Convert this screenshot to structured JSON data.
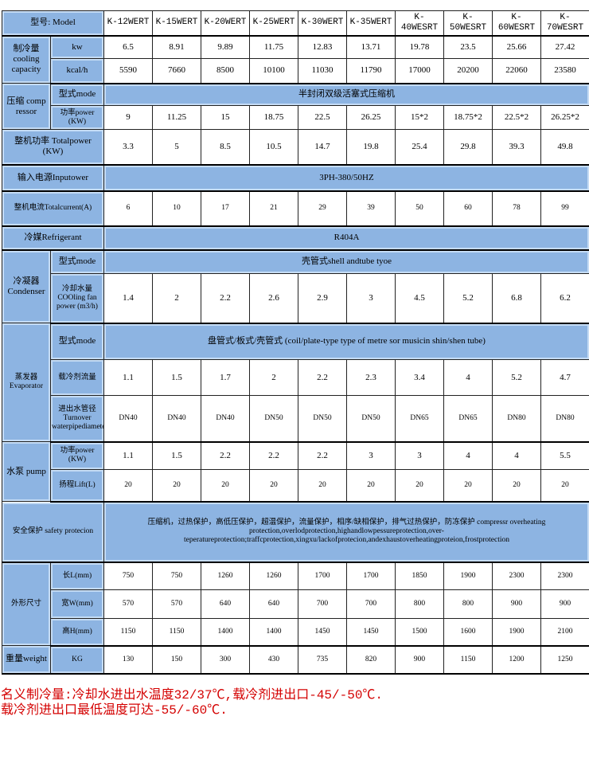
{
  "models_label": "型号: Model",
  "models": [
    "K-12WERT",
    "K-15WERT",
    "K-20WERT",
    "K-25WERT",
    "K-30WERT",
    "K-35WERT",
    "K-40WESRT",
    "K-50WESRT",
    "K-60WESRT",
    "K-70WESRT"
  ],
  "cooling": {
    "group": "制冷量 cooling capacity",
    "kw_label": "kw",
    "kw": [
      "6.5",
      "8.91",
      "9.89",
      "11.75",
      "12.83",
      "13.71",
      "19.78",
      "23.5",
      "25.66",
      "27.42"
    ],
    "kcal_label": "kcal/h",
    "kcal": [
      "5590",
      "7660",
      "8500",
      "10100",
      "11030",
      "11790",
      "17000",
      "20200",
      "22060",
      "23580"
    ]
  },
  "compressor": {
    "group": "压缩 comp ressor",
    "mode_label": "型式mode",
    "mode": "半封闭双级活塞式压缩机",
    "power_label": "功率power (KW)",
    "power": [
      "9",
      "11.25",
      "15",
      "18.75",
      "22.5",
      "26.25",
      "15*2",
      "18.75*2",
      "22.5*2",
      "26.25*2"
    ]
  },
  "total_power": {
    "label": "整机功率 Totalpower (KW)",
    "values": [
      "3.3",
      "5",
      "8.5",
      "10.5",
      "14.7",
      "19.8",
      "25.4",
      "29.8",
      "39.3",
      "49.8"
    ]
  },
  "input_power": {
    "label": "输入电源Inputower",
    "value": "3PH-380/50HZ"
  },
  "total_current": {
    "label": "整机电流Totalcurrent(A)",
    "values": [
      "6",
      "10",
      "17",
      "21",
      "29",
      "39",
      "50",
      "60",
      "78",
      "99"
    ]
  },
  "refrigerant": {
    "label": "冷媒Refrigerant",
    "value": "R404A"
  },
  "condenser": {
    "group": "冷凝器 Condenser",
    "mode_label": "型式mode",
    "mode": "壳管式shell andtube tyoe",
    "water_label": "冷却水量 COOling fan power (m3/h)",
    "water": [
      "1.4",
      "2",
      "2.2",
      "2.6",
      "2.9",
      "3",
      "4.5",
      "5.2",
      "6.8",
      "6.2"
    ]
  },
  "evaporator": {
    "group": "蒸发器 Evaporator",
    "mode_label": "型式mode",
    "mode": "盘管式/板式/壳管式 (coil/plate-type type of metre sor musicin shin/shen tube)",
    "flow_label": "载冷剂流量",
    "flow": [
      "1.1",
      "1.5",
      "1.7",
      "2",
      "2.2",
      "2.3",
      "3.4",
      "4",
      "5.2",
      "4.7"
    ],
    "pipe_label": "进出水管径 Turnover waterpipediameter",
    "pipe": [
      "DN40",
      "DN40",
      "DN40",
      "DN50",
      "DN50",
      "DN50",
      "DN65",
      "DN65",
      "DN80",
      "DN80"
    ]
  },
  "pump": {
    "group": "水泵  pump",
    "power_label": "功率power (KW)",
    "power": [
      "1.1",
      "1.5",
      "2.2",
      "2.2",
      "2.2",
      "3",
      "3",
      "4",
      "4",
      "5.5"
    ],
    "lift_label": "扬程Lift(L)",
    "lift": [
      "20",
      "20",
      "20",
      "20",
      "20",
      "20",
      "20",
      "20",
      "20",
      "20"
    ]
  },
  "safety": {
    "label": "安全保护 safety protecion",
    "value": "压缩机，过热保护，高低压保护，超温保护，流量保护，相序/缺相保护，排气过热保护，防冻保护 compressr overheating protection,overlodprotection,highandlowpessureprotection,over-teperatureprotection;traffcprotection,xingxu/lackofprotecion,andexhaustoverheatingproteion,frostprotection"
  },
  "dimensions": {
    "group": "外形尺寸",
    "l_label": "长L(mm)",
    "l": [
      "750",
      "750",
      "1260",
      "1260",
      "1700",
      "1700",
      "1850",
      "1900",
      "2300",
      "2300"
    ],
    "w_label": "宽W(mm)",
    "w": [
      "570",
      "570",
      "640",
      "640",
      "700",
      "700",
      "800",
      "800",
      "900",
      "900"
    ],
    "h_label": "高H(mm)",
    "h": [
      "1150",
      "1150",
      "1400",
      "1400",
      "1450",
      "1450",
      "1500",
      "1600",
      "1900",
      "2100"
    ]
  },
  "weight": {
    "label": "重量weight",
    "unit": "KG",
    "values": [
      "130",
      "150",
      "300",
      "430",
      "735",
      "820",
      "900",
      "1150",
      "1200",
      "1250"
    ]
  },
  "note": [
    "名义制冷量:冷却水进出水温度32/37℃,载冷剂进出口-45/-50℃.",
    "载冷剂进出口最低温度可达-55/-60℃."
  ],
  "colors": {
    "label_fill": "#8db4e2",
    "note_text": "#d40000"
  }
}
